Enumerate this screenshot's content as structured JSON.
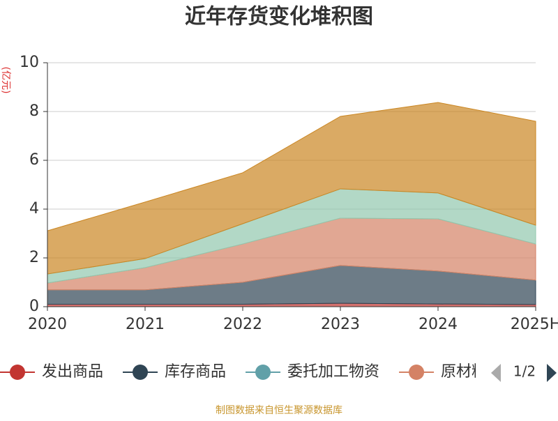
{
  "chart_data": {
    "type": "stacked_area",
    "title": "近年存货变化堆积图",
    "y_label": "(亿元)",
    "categories": [
      "2020",
      "2021",
      "2022",
      "2023",
      "2024",
      "2025H"
    ],
    "ylim": [
      0,
      10
    ],
    "yticks": [
      0,
      2,
      4,
      6,
      8,
      10
    ],
    "grid": true,
    "series": [
      {
        "name": "发出商品",
        "color": "#c23531",
        "values": [
          0.1,
          0.1,
          0.1,
          0.14,
          0.11,
          0.09
        ]
      },
      {
        "name": "库存商品",
        "color": "#2f4554",
        "values": [
          0.59,
          0.59,
          0.9,
          1.55,
          1.35,
          1.0
        ]
      },
      {
        "name": "委托加工物资",
        "color": "#61a0a8",
        "values": [
          0,
          0,
          0,
          0,
          0,
          0
        ]
      },
      {
        "name": "原材料",
        "color": "#d48265",
        "values": [
          0.28,
          0.91,
          1.57,
          1.94,
          2.14,
          1.48
        ]
      },
      {
        "color": "#91c7ae",
        "values": [
          0.37,
          0.37,
          0.83,
          1.2,
          1.06,
          0.77
        ]
      },
      {
        "color": "#ca8622",
        "values": [
          1.77,
          2.32,
          2.09,
          2.97,
          3.71,
          4.26
        ]
      }
    ],
    "legend_page": "1/2",
    "source": "制图数据来自恒生聚源数据库"
  }
}
